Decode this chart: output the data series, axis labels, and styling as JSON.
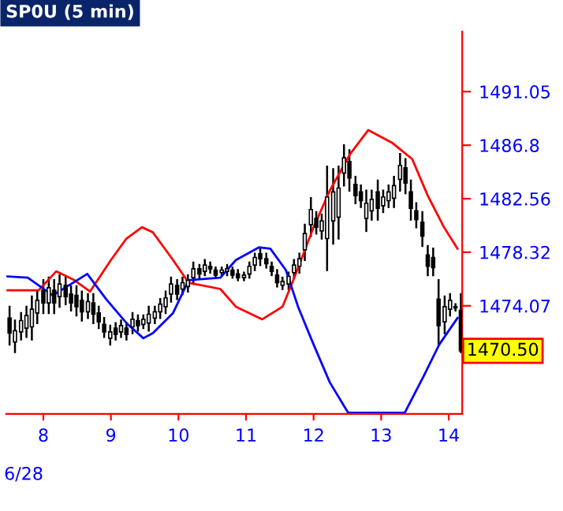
{
  "chart_data": {
    "type": "candlestick",
    "title": "SP0U (5 min)",
    "color": "#000000",
    "x": [
      7.5,
      7.58,
      7.67,
      7.75,
      7.83,
      7.91,
      8.0,
      8.08,
      8.16,
      8.24,
      8.33,
      8.41,
      8.49,
      8.57,
      8.66,
      8.74,
      8.82,
      8.9,
      8.99,
      9.07,
      9.15,
      9.23,
      9.32,
      9.4,
      9.48,
      9.56,
      9.65,
      9.73,
      9.81,
      9.89,
      9.98,
      10.06,
      10.14,
      10.22,
      10.31,
      10.39,
      10.47,
      10.55,
      10.64,
      10.72,
      10.8,
      10.88,
      10.97,
      11.05,
      11.13,
      11.21,
      11.3,
      11.38,
      11.46,
      11.54,
      11.63,
      11.71,
      11.79,
      11.87,
      11.96,
      12.04,
      12.12,
      12.2,
      12.29,
      12.37,
      12.45,
      12.53,
      12.62,
      12.7,
      12.78,
      12.86,
      12.95,
      13.03,
      13.11,
      13.19,
      13.28,
      13.36,
      13.44,
      13.52,
      13.61,
      13.69,
      13.77,
      13.85,
      13.94,
      14.02,
      14.1,
      14.18
    ],
    "ohlc": [
      [
        1473.1,
        1474.0,
        1471.0,
        1471.9
      ],
      [
        1471.2,
        1472.9,
        1470.4,
        1472.1
      ],
      [
        1472.0,
        1473.5,
        1471.4,
        1472.9
      ],
      [
        1472.3,
        1474.0,
        1471.6,
        1473.3
      ],
      [
        1472.4,
        1474.8,
        1471.4,
        1473.8
      ],
      [
        1473.5,
        1475.2,
        1472.7,
        1474.5
      ],
      [
        1475.3,
        1476.1,
        1473.5,
        1474.3
      ],
      [
        1474.3,
        1476.3,
        1473.5,
        1475.5
      ],
      [
        1475.3,
        1476.1,
        1473.5,
        1474.3
      ],
      [
        1474.8,
        1476.5,
        1474.0,
        1475.8
      ],
      [
        1475.7,
        1476.3,
        1474.2,
        1474.8
      ],
      [
        1475.0,
        1475.6,
        1473.7,
        1474.3
      ],
      [
        1474.9,
        1475.6,
        1473.3,
        1474.0
      ],
      [
        1474.5,
        1475.2,
        1472.9,
        1473.6
      ],
      [
        1473.6,
        1475.0,
        1473.1,
        1474.4
      ],
      [
        1474.3,
        1475.0,
        1472.7,
        1473.4
      ],
      [
        1473.5,
        1474.0,
        1472.3,
        1472.8
      ],
      [
        1472.6,
        1473.1,
        1471.6,
        1472.0
      ],
      [
        1471.5,
        1472.5,
        1471.0,
        1472.0
      ],
      [
        1472.3,
        1472.7,
        1471.4,
        1471.8
      ],
      [
        1472.0,
        1472.9,
        1471.6,
        1472.5
      ],
      [
        1472.3,
        1472.7,
        1471.4,
        1471.8
      ],
      [
        1472.4,
        1473.5,
        1471.9,
        1473.0
      ],
      [
        1472.9,
        1473.3,
        1472.1,
        1472.5
      ],
      [
        1472.6,
        1473.3,
        1472.3,
        1473.0
      ],
      [
        1472.7,
        1474.0,
        1472.1,
        1473.4
      ],
      [
        1473.1,
        1474.0,
        1472.7,
        1473.6
      ],
      [
        1473.6,
        1474.6,
        1473.1,
        1474.2
      ],
      [
        1474.0,
        1475.2,
        1473.5,
        1474.7
      ],
      [
        1475.0,
        1476.3,
        1474.4,
        1475.8
      ],
      [
        1475.7,
        1476.1,
        1474.6,
        1475.0
      ],
      [
        1475.4,
        1476.3,
        1475.0,
        1475.9
      ],
      [
        1475.6,
        1476.5,
        1475.2,
        1476.1
      ],
      [
        1476.3,
        1477.5,
        1475.8,
        1477.0
      ],
      [
        1477.0,
        1477.3,
        1476.3,
        1476.6
      ],
      [
        1476.8,
        1477.7,
        1476.5,
        1477.3
      ],
      [
        1477.2,
        1477.5,
        1476.7,
        1477.0
      ],
      [
        1476.9,
        1477.1,
        1476.3,
        1476.5
      ],
      [
        1476.7,
        1477.1,
        1476.5,
        1476.9
      ],
      [
        1476.8,
        1477.3,
        1476.5,
        1477.0
      ],
      [
        1476.9,
        1477.1,
        1476.3,
        1476.5
      ],
      [
        1476.6,
        1476.9,
        1476.1,
        1476.3
      ],
      [
        1476.3,
        1476.7,
        1476.1,
        1476.5
      ],
      [
        1476.6,
        1477.5,
        1476.3,
        1477.2
      ],
      [
        1477.3,
        1478.2,
        1476.9,
        1477.9
      ],
      [
        1478.2,
        1478.6,
        1477.3,
        1477.8
      ],
      [
        1477.8,
        1478.2,
        1477.1,
        1477.4
      ],
      [
        1477.2,
        1477.5,
        1476.5,
        1476.8
      ],
      [
        1476.5,
        1476.9,
        1475.6,
        1475.9
      ],
      [
        1475.7,
        1476.3,
        1475.4,
        1476.0
      ],
      [
        1475.8,
        1476.7,
        1475.4,
        1476.4
      ],
      [
        1476.7,
        1477.7,
        1476.3,
        1477.3
      ],
      [
        1477.2,
        1478.2,
        1476.7,
        1477.8
      ],
      [
        1478.5,
        1480.5,
        1477.7,
        1479.8
      ],
      [
        1480.5,
        1482.6,
        1479.6,
        1481.7
      ],
      [
        1481.0,
        1481.5,
        1479.8,
        1480.3
      ],
      [
        1480.0,
        1481.3,
        1479.4,
        1480.8
      ],
      [
        1479.4,
        1485.1,
        1476.9,
        1482.7
      ],
      [
        1480.8,
        1484.9,
        1479.0,
        1483.1
      ],
      [
        1481.1,
        1485.1,
        1479.4,
        1483.4
      ],
      [
        1484.6,
        1486.8,
        1483.6,
        1485.8
      ],
      [
        1485.5,
        1486.4,
        1483.2,
        1484.2
      ],
      [
        1483.7,
        1484.3,
        1482.2,
        1482.8
      ],
      [
        1483.1,
        1483.6,
        1481.9,
        1482.4
      ],
      [
        1481.0,
        1483.2,
        1480.0,
        1482.2
      ],
      [
        1481.6,
        1483.2,
        1480.9,
        1482.5
      ],
      [
        1483.1,
        1484.0,
        1480.9,
        1481.8
      ],
      [
        1482.0,
        1483.2,
        1481.5,
        1482.7
      ],
      [
        1482.4,
        1483.6,
        1481.9,
        1483.1
      ],
      [
        1482.6,
        1484.3,
        1481.9,
        1483.6
      ],
      [
        1484.1,
        1486.1,
        1483.2,
        1485.2
      ],
      [
        1485.0,
        1485.7,
        1483.0,
        1483.8
      ],
      [
        1483.1,
        1484.0,
        1480.9,
        1481.8
      ],
      [
        1481.6,
        1482.2,
        1480.3,
        1480.9
      ],
      [
        1480.7,
        1481.5,
        1478.8,
        1479.6
      ],
      [
        1478.1,
        1478.8,
        1476.5,
        1477.2
      ],
      [
        1477.9,
        1478.6,
        1476.5,
        1477.1
      ],
      [
        1474.6,
        1476.1,
        1471.0,
        1472.5
      ],
      [
        1472.8,
        1474.8,
        1471.9,
        1474.0
      ],
      [
        1473.8,
        1475.0,
        1473.3,
        1474.5
      ],
      [
        1473.9,
        1474.2,
        1473.7,
        1474.0
      ],
      [
        1473.7,
        1475.0,
        1470.4,
        1470.5
      ]
    ],
    "series": [
      {
        "type": "line",
        "color": "#ff0000",
        "x": [
          7.47,
          7.93,
          8.19,
          8.46,
          8.69,
          9.0,
          9.23,
          9.46,
          9.62,
          9.92,
          10.15,
          10.62,
          10.85,
          11.24,
          11.54,
          11.7,
          12.0,
          12.24,
          12.54,
          12.81,
          13.16,
          13.46,
          13.69,
          13.93,
          14.13
        ],
        "values": [
          1475.3,
          1475.3,
          1476.8,
          1476.1,
          1475.2,
          1477.7,
          1479.4,
          1480.3,
          1479.9,
          1477.7,
          1475.9,
          1475.4,
          1474.0,
          1473.0,
          1474.0,
          1476.1,
          1480.3,
          1483.2,
          1486.1,
          1488.0,
          1487.0,
          1485.7,
          1482.8,
          1480.3,
          1478.6
        ]
      },
      {
        "type": "line",
        "color": "#0000ff",
        "x": [
          7.47,
          7.77,
          8.14,
          8.65,
          8.93,
          9.23,
          9.48,
          9.62,
          9.92,
          10.15,
          10.62,
          10.85,
          11.19,
          11.36,
          11.59,
          11.77,
          12.0,
          12.24,
          12.51,
          13.35,
          13.63,
          13.86,
          14.13
        ],
        "values": [
          1476.4,
          1476.3,
          1474.9,
          1476.6,
          1474.6,
          1472.7,
          1471.5,
          1471.9,
          1473.5,
          1476.1,
          1476.3,
          1477.7,
          1478.7,
          1478.6,
          1476.9,
          1474.0,
          1471.0,
          1468.0,
          1465.6,
          1465.6,
          1468.5,
          1471.0,
          1473.1
        ]
      }
    ],
    "xlim": [
      7.45,
      14.2
    ],
    "xticks": [
      8,
      9,
      10,
      11,
      12,
      13,
      14
    ],
    "ylim": [
      1465.5,
      1495.8
    ],
    "yticks": [
      1474.07,
      1478.32,
      1482.56,
      1486.8,
      1491.05
    ],
    "annotations": [
      "6/28",
      "1470.50"
    ],
    "grid": false,
    "legend": false
  }
}
